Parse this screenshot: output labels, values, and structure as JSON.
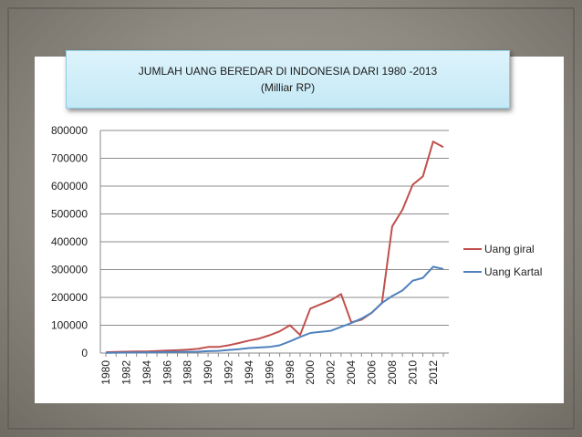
{
  "chart_data": {
    "type": "line",
    "title": "JUMLAH UANG BEREDAR DI INDONESIA DARI 1980 -2013",
    "subtitle": "(Milliar RP)",
    "xlabel": "",
    "ylabel": "",
    "x": [
      1980,
      1981,
      1982,
      1983,
      1984,
      1985,
      1986,
      1987,
      1988,
      1989,
      1990,
      1991,
      1992,
      1993,
      1994,
      1995,
      1996,
      1997,
      1998,
      1999,
      2000,
      2001,
      2002,
      2003,
      2004,
      2005,
      2006,
      2007,
      2008,
      2009,
      2010,
      2011,
      2012,
      2013
    ],
    "x_tick_labels": [
      "1980",
      "1982",
      "1984",
      "1986",
      "1988",
      "1990",
      "1992",
      "1994",
      "1996",
      "1998",
      "2000",
      "2002",
      "2004",
      "2006",
      "2008",
      "2010",
      "2012"
    ],
    "ylim": [
      0,
      800000
    ],
    "y_tick_labels": [
      "0",
      "100000",
      "200000",
      "300000",
      "400000",
      "500000",
      "600000",
      "700000",
      "800000"
    ],
    "grid": true,
    "legend_position": "right",
    "series": [
      {
        "name": "Uang giral",
        "color": "#c0504d",
        "values": [
          3000,
          4000,
          5000,
          5500,
          6000,
          7500,
          9000,
          10000,
          12000,
          15000,
          22000,
          22000,
          28000,
          36000,
          45000,
          52000,
          64000,
          78000,
          100000,
          65000,
          160000,
          175000,
          190000,
          212000,
          110000,
          120000,
          145000,
          180000,
          455000,
          515000,
          605000,
          635000,
          760000,
          740000
        ]
      },
      {
        "name": "Uang Kartal",
        "color": "#4f81bd",
        "values": [
          1000,
          1200,
          1500,
          2000,
          2500,
          3000,
          3500,
          4000,
          4500,
          5000,
          7000,
          8000,
          11000,
          14000,
          18000,
          20000,
          22000,
          28000,
          42000,
          58000,
          72000,
          76000,
          80000,
          94000,
          108000,
          124000,
          145000,
          180000,
          205000,
          225000,
          260000,
          270000,
          310000,
          302000
        ]
      }
    ]
  }
}
